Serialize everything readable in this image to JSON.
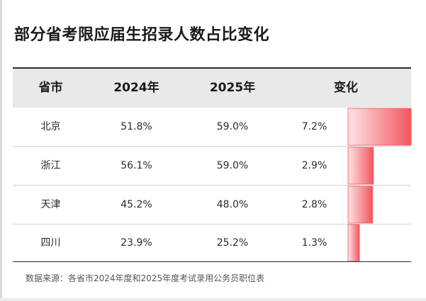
{
  "title": "部分省考限应届生招录人数占比变化",
  "table": {
    "headers": [
      "省市",
      "2024年",
      "2025年",
      "变化"
    ],
    "rows": [
      {
        "province": "北京",
        "y2024": "51.8%",
        "y2025": "59.0%",
        "change": "7.2%"
      },
      {
        "province": "浙江",
        "y2024": "56.1%",
        "y2025": "59.0%",
        "change": "2.9%"
      },
      {
        "province": "天津",
        "y2024": "45.2%",
        "y2025": "48.0%",
        "change": "2.8%"
      },
      {
        "province": "四川",
        "y2024": "23.9%",
        "y2025": "25.2%",
        "change": "1.3%"
      }
    ]
  },
  "source": "数据来源：各省市2024年度和2025年度考试录用公务员职位表",
  "colors": {
    "bar_strong": "#f2555e",
    "bar_light": "#fde4e6",
    "header_bg": "#e9e9e9"
  },
  "chart_data": {
    "type": "table",
    "columns": [
      "省市",
      "2024年",
      "2025年",
      "变化"
    ],
    "categories": [
      "北京",
      "浙江",
      "天津",
      "四川"
    ],
    "series": [
      {
        "name": "2024年",
        "values": [
          51.8,
          56.1,
          45.2,
          23.9
        ]
      },
      {
        "name": "2025年",
        "values": [
          59.0,
          59.0,
          48.0,
          25.2
        ]
      },
      {
        "name": "变化",
        "values": [
          7.2,
          2.9,
          2.8,
          1.3
        ]
      }
    ],
    "title": "部分省考限应届生招录人数占比变化"
  }
}
